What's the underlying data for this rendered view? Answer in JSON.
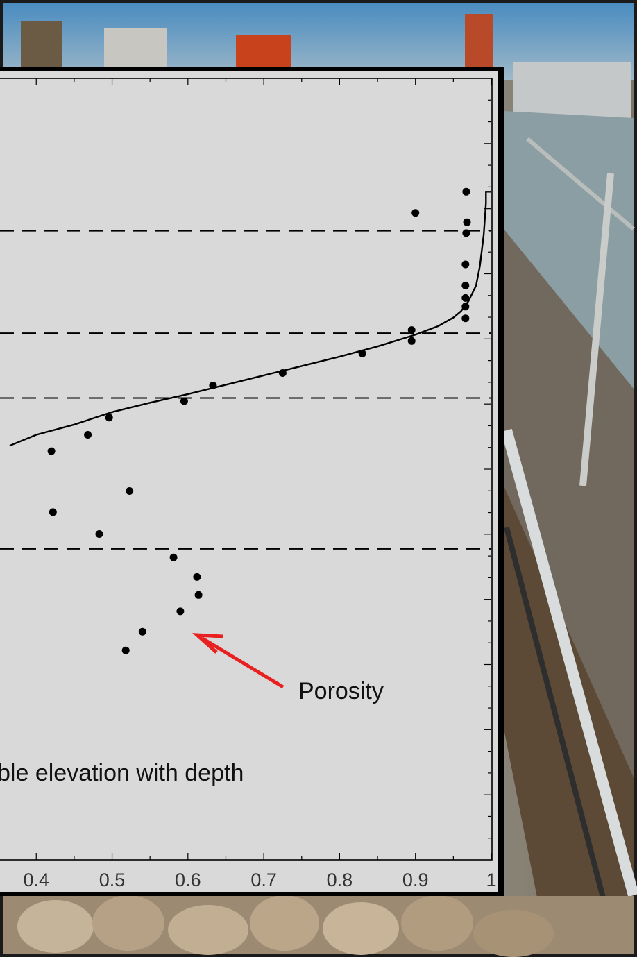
{
  "chart_data": {
    "type": "scatter",
    "title": "",
    "xlabel": "",
    "ylabel": "",
    "x_ticks": [
      "0.4",
      "0.5",
      "0.6",
      "0.7",
      "0.8",
      "0.9",
      "1"
    ],
    "xlim": [
      0.365,
      1.0
    ],
    "grid": false,
    "dashed_reference_lines": 4,
    "series": [
      {
        "name": "Porosity",
        "type": "scatter",
        "points": [
          [
            0.967,
            0.855
          ],
          [
            0.9,
            0.828
          ],
          [
            0.968,
            0.816
          ],
          [
            0.967,
            0.802
          ],
          [
            0.966,
            0.762
          ],
          [
            0.966,
            0.735
          ],
          [
            0.966,
            0.719
          ],
          [
            0.966,
            0.708
          ],
          [
            0.966,
            0.693
          ],
          [
            0.895,
            0.678
          ],
          [
            0.895,
            0.664
          ],
          [
            0.83,
            0.648
          ],
          [
            0.725,
            0.623
          ],
          [
            0.633,
            0.607
          ],
          [
            0.595,
            0.587
          ],
          [
            0.496,
            0.566
          ],
          [
            0.468,
            0.544
          ],
          [
            0.42,
            0.523
          ],
          [
            0.523,
            0.472
          ],
          [
            0.422,
            0.445
          ],
          [
            0.483,
            0.417
          ],
          [
            0.581,
            0.387
          ],
          [
            0.612,
            0.362
          ],
          [
            0.614,
            0.339
          ],
          [
            0.59,
            0.318
          ],
          [
            0.54,
            0.292
          ],
          [
            0.518,
            0.268
          ]
        ]
      },
      {
        "type": "line",
        "points": [
          [
            0.365,
            0.53
          ],
          [
            0.4,
            0.544
          ],
          [
            0.45,
            0.557
          ],
          [
            0.5,
            0.573
          ],
          [
            0.55,
            0.585
          ],
          [
            0.6,
            0.596
          ],
          [
            0.65,
            0.608
          ],
          [
            0.7,
            0.62
          ],
          [
            0.75,
            0.632
          ],
          [
            0.8,
            0.644
          ],
          [
            0.85,
            0.657
          ],
          [
            0.9,
            0.672
          ],
          [
            0.93,
            0.683
          ],
          [
            0.95,
            0.694
          ],
          [
            0.96,
            0.702
          ],
          [
            0.97,
            0.715
          ],
          [
            0.98,
            0.735
          ],
          [
            0.985,
            0.76
          ],
          [
            0.99,
            0.8
          ],
          [
            0.993,
            0.84
          ],
          [
            0.993,
            0.855
          ],
          [
            1.0,
            0.855
          ]
        ]
      }
    ],
    "dashed_lines_y": [
      0.805,
      0.674,
      0.591,
      0.398
    ],
    "annotations": [
      {
        "text": "Porosity",
        "points_to": [
          0.617,
          0.32
        ]
      },
      {
        "text": "ble elevation with depth"
      }
    ]
  },
  "colors": {
    "plot_background": "#d9d9d9",
    "points": "#000000",
    "arrow": "#e82020",
    "frame": "#000000"
  }
}
